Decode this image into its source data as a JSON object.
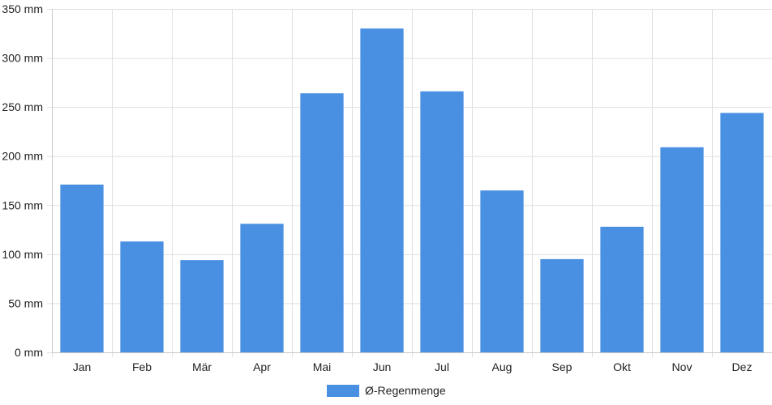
{
  "chart_data": {
    "type": "bar",
    "categories": [
      "Jan",
      "Feb",
      "Mär",
      "Apr",
      "Mai",
      "Jun",
      "Jul",
      "Aug",
      "Sep",
      "Okt",
      "Nov",
      "Dez"
    ],
    "series": [
      {
        "name": "Ø-Regenmenge",
        "values": [
          171,
          113,
          94,
          131,
          264,
          330,
          266,
          165,
          95,
          128,
          209,
          244
        ],
        "color": "#4a90e2"
      }
    ],
    "y_ticks": [
      "0 mm",
      "50 mm",
      "100 mm",
      "150 mm",
      "200 mm",
      "250 mm",
      "300 mm",
      "350 mm"
    ],
    "ylim": [
      0,
      350
    ],
    "grid": true,
    "legend_position": "bottom-center"
  }
}
